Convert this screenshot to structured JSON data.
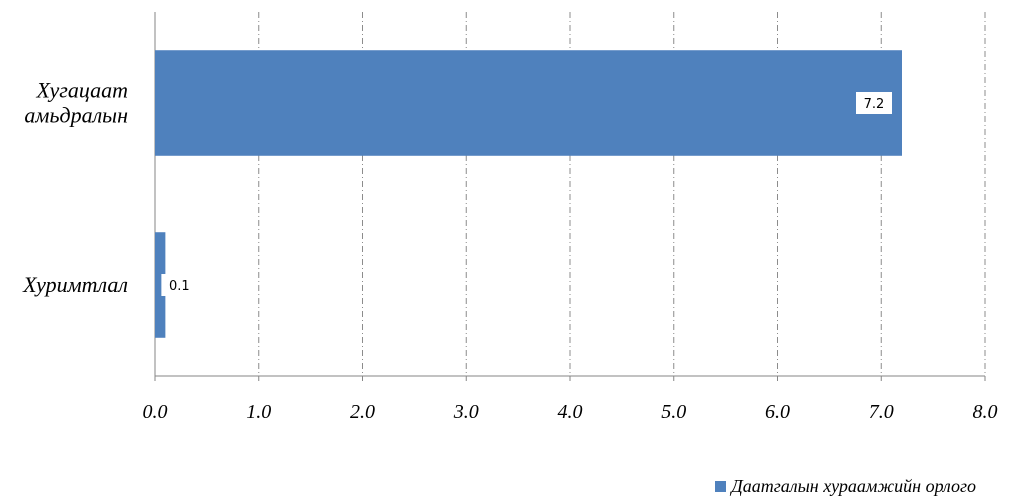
{
  "chart_data": {
    "type": "bar",
    "orientation": "horizontal",
    "categories": [
      "Хугацаат амьдралын",
      "Хуримтлал"
    ],
    "category_lines": [
      [
        "Хугацаат",
        "амьдралын"
      ],
      [
        "Хуримтлал"
      ]
    ],
    "series": [
      {
        "name": "Даатгалын хураамжийн орлого",
        "values": [
          7.2,
          0.1
        ],
        "color": "#4F81BD"
      }
    ],
    "data_labels": [
      "7.2",
      "0.1"
    ],
    "title": "",
    "xlabel": "",
    "ylabel": "",
    "xlim": [
      0,
      8
    ],
    "x_ticks": [
      "0.0",
      "1.0",
      "2.0",
      "3.0",
      "4.0",
      "5.0",
      "6.0",
      "7.0",
      "8.0"
    ],
    "grid": "vertical dashed",
    "legend_position": "bottom-right"
  }
}
